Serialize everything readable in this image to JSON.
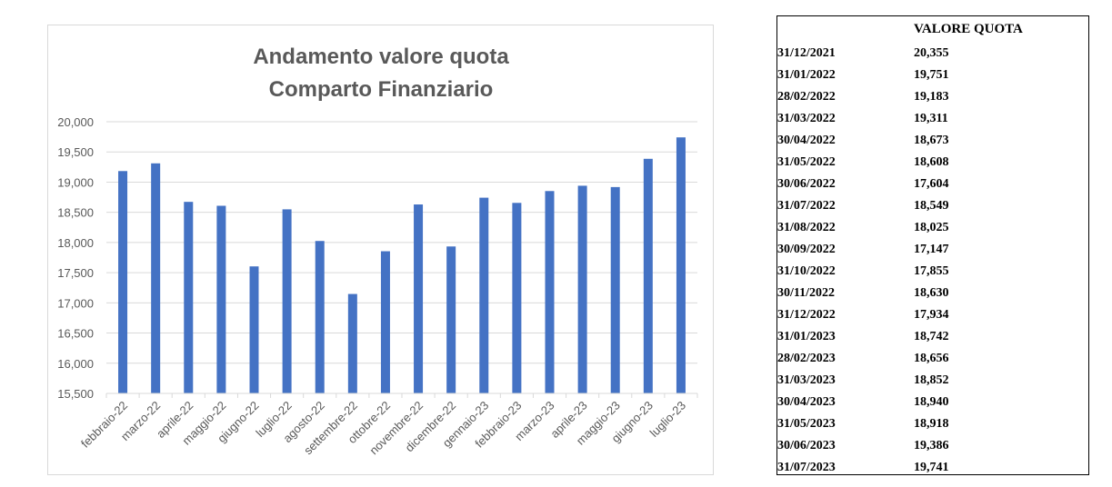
{
  "chart_data": {
    "type": "bar",
    "title": [
      "Andamento valore quota",
      "Comparto Finanziario"
    ],
    "categories": [
      "febbraio-22",
      "marzo-22",
      "aprile-22",
      "maggio-22",
      "giugno-22",
      "luglio-22",
      "agosto-22",
      "settembre-22",
      "ottobre-22",
      "novembre-22",
      "dicembre-22",
      "gennaio-23",
      "febbraio-23",
      "marzo-23",
      "aprile-23",
      "maggio-23",
      "giugno-23",
      "luglio-23"
    ],
    "values": [
      19.183,
      19.311,
      18.673,
      18.608,
      17.604,
      18.549,
      18.025,
      17.147,
      17.855,
      18.63,
      17.934,
      18.742,
      18.656,
      18.852,
      18.94,
      18.918,
      19.386,
      19.741
    ],
    "ylim": [
      15.5,
      20.0
    ],
    "yticks": [
      15.5,
      16.0,
      16.5,
      17.0,
      17.5,
      18.0,
      18.5,
      19.0,
      19.5,
      20.0
    ],
    "ytick_labels": [
      "15,500",
      "16,000",
      "16,500",
      "17,000",
      "17,500",
      "18,000",
      "18,500",
      "19,000",
      "19,500",
      "20,000"
    ],
    "grid": true,
    "bar_color": "#4472c4"
  },
  "table": {
    "header": "VALORE QUOTA",
    "rows": [
      {
        "date": "31/12/2021",
        "value": "20,355"
      },
      {
        "date": "31/01/2022",
        "value": "19,751"
      },
      {
        "date": "28/02/2022",
        "value": "19,183"
      },
      {
        "date": "31/03/2022",
        "value": "19,311"
      },
      {
        "date": "30/04/2022",
        "value": "18,673"
      },
      {
        "date": "31/05/2022",
        "value": "18,608"
      },
      {
        "date": "30/06/2022",
        "value": "17,604"
      },
      {
        "date": "31/07/2022",
        "value": "18,549"
      },
      {
        "date": "31/08/2022",
        "value": "18,025"
      },
      {
        "date": "30/09/2022",
        "value": "17,147"
      },
      {
        "date": "31/10/2022",
        "value": "17,855"
      },
      {
        "date": "30/11/2022",
        "value": "18,630"
      },
      {
        "date": "31/12/2022",
        "value": "17,934"
      },
      {
        "date": "31/01/2023",
        "value": "18,742"
      },
      {
        "date": "28/02/2023",
        "value": "18,656"
      },
      {
        "date": "31/03/2023",
        "value": "18,852"
      },
      {
        "date": "30/04/2023",
        "value": "18,940"
      },
      {
        "date": "31/05/2023",
        "value": "18,918"
      },
      {
        "date": "30/06/2023",
        "value": "19,386"
      },
      {
        "date": "31/07/2023",
        "value": "19,741"
      }
    ]
  }
}
